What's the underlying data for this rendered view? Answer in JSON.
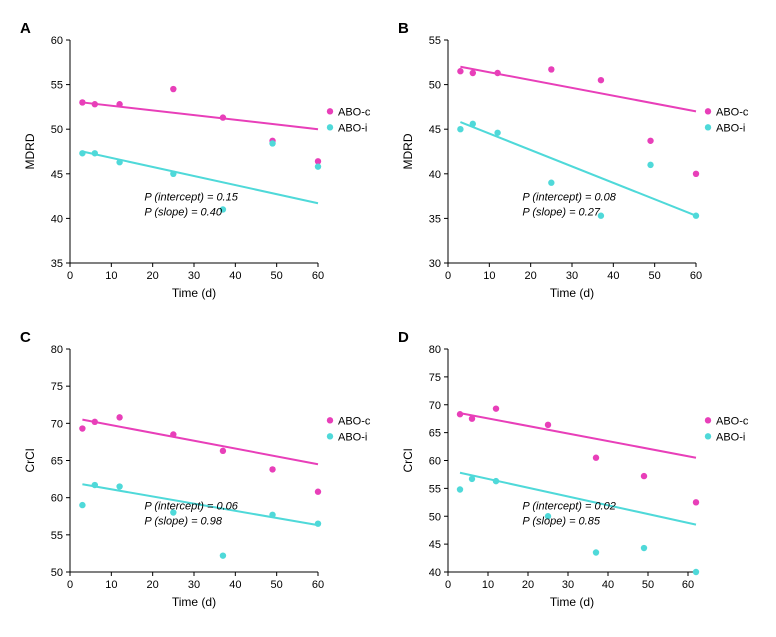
{
  "colors": {
    "series1": "#e83fb9",
    "series2": "#4fd9d9",
    "background": "#ffffff",
    "axis": "#000000",
    "text": "#000000"
  },
  "legend": {
    "items": [
      {
        "label": "ABO-c",
        "colorKey": "series1"
      },
      {
        "label": "ABO-i",
        "colorKey": "series2"
      }
    ]
  },
  "marker": {
    "size": 3.2
  },
  "line_width": 2,
  "font": {
    "tick": 11,
    "axis_label": 12,
    "panel_label": 15,
    "pval": 11
  },
  "panels": [
    {
      "id": "A",
      "label": "A",
      "ylabel": "MDRD",
      "xlabel": "Time (d)",
      "xlim": [
        0,
        60
      ],
      "xtick_step": 10,
      "ylim": [
        35,
        60
      ],
      "ytick_step": 5,
      "series": [
        {
          "colorKey": "series1",
          "points": [
            [
              3,
              53
            ],
            [
              6,
              52.8
            ],
            [
              12,
              52.8
            ],
            [
              25,
              54.5
            ],
            [
              37,
              51.3
            ],
            [
              49,
              48.7
            ],
            [
              60,
              46.4
            ]
          ],
          "trend": [
            [
              3,
              53
            ],
            [
              60,
              50
            ]
          ]
        },
        {
          "colorKey": "series2",
          "points": [
            [
              3,
              47.3
            ],
            [
              6,
              47.3
            ],
            [
              12,
              46.3
            ],
            [
              25,
              45
            ],
            [
              37,
              41
            ],
            [
              49,
              48.4
            ],
            [
              60,
              45.8
            ]
          ],
          "trend": [
            [
              3,
              47.5
            ],
            [
              60,
              41.7
            ]
          ]
        }
      ],
      "pvals": {
        "intercept": "0.15",
        "slope": "0.40"
      }
    },
    {
      "id": "B",
      "label": "B",
      "ylabel": "MDRD",
      "xlabel": "Time (d)",
      "xlim": [
        0,
        60
      ],
      "xtick_step": 10,
      "ylim": [
        30,
        55
      ],
      "ytick_step": 5,
      "series": [
        {
          "colorKey": "series1",
          "points": [
            [
              3,
              51.5
            ],
            [
              6,
              51.3
            ],
            [
              12,
              51.3
            ],
            [
              25,
              51.7
            ],
            [
              37,
              50.5
            ],
            [
              49,
              43.7
            ],
            [
              60,
              40
            ]
          ],
          "trend": [
            [
              3,
              52
            ],
            [
              60,
              47
            ]
          ]
        },
        {
          "colorKey": "series2",
          "points": [
            [
              3,
              45
            ],
            [
              6,
              45.6
            ],
            [
              12,
              44.6
            ],
            [
              25,
              39
            ],
            [
              37,
              35.3
            ],
            [
              49,
              41
            ],
            [
              60,
              35.3
            ]
          ],
          "trend": [
            [
              3,
              45.8
            ],
            [
              60,
              35.3
            ]
          ]
        }
      ],
      "pvals": {
        "intercept": "0.08",
        "slope": "0.27"
      }
    },
    {
      "id": "C",
      "label": "C",
      "ylabel": "CrCl",
      "xlabel": "Time (d)",
      "xlim": [
        0,
        60
      ],
      "xtick_step": 10,
      "ylim": [
        50,
        80
      ],
      "ytick_step": 5,
      "series": [
        {
          "colorKey": "series1",
          "points": [
            [
              3,
              69.3
            ],
            [
              6,
              70.2
            ],
            [
              12,
              70.8
            ],
            [
              25,
              68.5
            ],
            [
              37,
              66.3
            ],
            [
              49,
              63.8
            ],
            [
              60,
              60.8
            ]
          ],
          "trend": [
            [
              3,
              70.5
            ],
            [
              60,
              64.5
            ]
          ]
        },
        {
          "colorKey": "series2",
          "points": [
            [
              3,
              59
            ],
            [
              6,
              61.7
            ],
            [
              12,
              61.5
            ],
            [
              25,
              58
            ],
            [
              37,
              52.2
            ],
            [
              49,
              57.7
            ],
            [
              60,
              56.5
            ]
          ],
          "trend": [
            [
              3,
              61.8
            ],
            [
              60,
              56.3
            ]
          ]
        }
      ],
      "pvals": {
        "intercept": "0.06",
        "slope": "0.98"
      }
    },
    {
      "id": "D",
      "label": "D",
      "ylabel": "CrCl",
      "xlabel": "Time (d)",
      "xlim": [
        0,
        62
      ],
      "xtick_step": 10,
      "ylim": [
        40,
        80
      ],
      "ytick_step": 5,
      "series": [
        {
          "colorKey": "series1",
          "points": [
            [
              3,
              68.3
            ],
            [
              6,
              67.5
            ],
            [
              12,
              69.3
            ],
            [
              25,
              66.4
            ],
            [
              37,
              60.5
            ],
            [
              49,
              57.2
            ],
            [
              62,
              52.5
            ]
          ],
          "trend": [
            [
              3,
              68.5
            ],
            [
              62,
              60.5
            ]
          ]
        },
        {
          "colorKey": "series2",
          "points": [
            [
              3,
              54.8
            ],
            [
              6,
              56.7
            ],
            [
              12,
              56.3
            ],
            [
              25,
              50
            ],
            [
              37,
              43.5
            ],
            [
              49,
              44.3
            ],
            [
              62,
              40
            ]
          ],
          "trend": [
            [
              3,
              57.8
            ],
            [
              62,
              48.5
            ]
          ]
        }
      ],
      "pvals": {
        "intercept": "0.02",
        "slope": "0.85"
      }
    }
  ]
}
